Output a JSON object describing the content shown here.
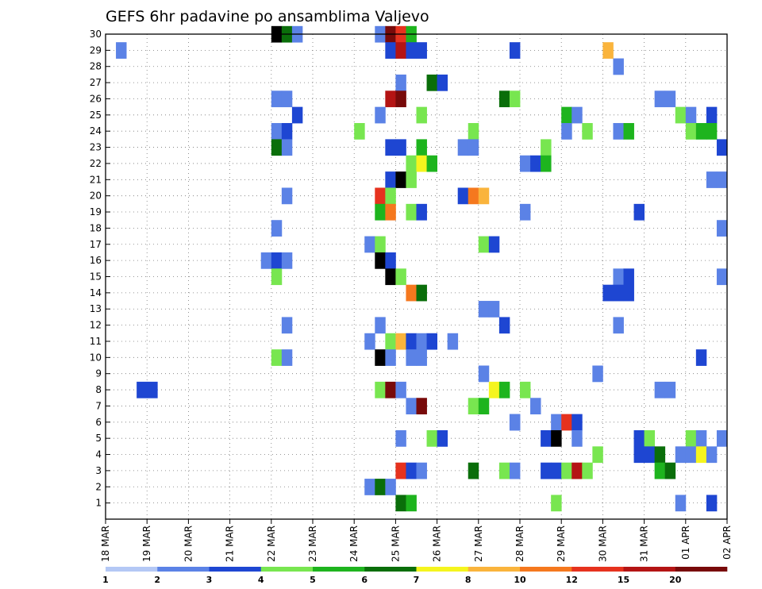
{
  "chart_data": {
    "type": "heatmap",
    "title": "GEFS 6hr padavine po ansamblima Valjevo",
    "x_tick_labels": [
      "18 MAR",
      "19 MAR",
      "20 MAR",
      "21 MAR",
      "22 MAR",
      "23 MAR",
      "24 MAR",
      "25 MAR",
      "26 MAR",
      "27 MAR",
      "28 MAR",
      "29 MAR",
      "30 MAR",
      "31 MAR",
      "01 APR",
      "02 APR"
    ],
    "y_tick_labels": [
      "1",
      "2",
      "3",
      "4",
      "5",
      "6",
      "7",
      "8",
      "9",
      "10",
      "11",
      "12",
      "13",
      "14",
      "15",
      "16",
      "17",
      "18",
      "19",
      "20",
      "21",
      "22",
      "23",
      "24",
      "25",
      "26",
      "27",
      "28",
      "29",
      "30"
    ],
    "xlim": [
      0,
      60
    ],
    "ylim": [
      0,
      30
    ],
    "grid": true,
    "legend": {
      "position": "bottom",
      "thresholds": [
        "1",
        "2",
        "3",
        "4",
        "5",
        "6",
        "7",
        "8",
        "10",
        "12",
        "15",
        "20"
      ],
      "colors": [
        "#b4c8f5",
        "#5b82e6",
        "#1e46d2",
        "#78e650",
        "#1eb41e",
        "#0a6e0a",
        "#f5f51e",
        "#fab43c",
        "#f5781e",
        "#e6321e",
        "#b41414",
        "#780a0a"
      ]
    },
    "cells": [
      [
        16,
        30,
        12
      ],
      [
        17,
        30,
        5
      ],
      [
        18,
        30,
        1
      ],
      [
        26,
        30,
        1
      ],
      [
        27,
        30,
        11
      ],
      [
        28,
        30,
        9
      ],
      [
        29,
        30,
        4
      ],
      [
        1,
        29,
        1
      ],
      [
        27,
        29,
        2
      ],
      [
        28,
        29,
        10
      ],
      [
        29,
        29,
        2
      ],
      [
        30,
        29,
        2
      ],
      [
        39,
        29,
        2
      ],
      [
        48,
        29,
        7
      ],
      [
        49,
        28,
        1
      ],
      [
        28,
        27,
        1
      ],
      [
        31,
        27,
        5
      ],
      [
        32,
        27,
        2
      ],
      [
        16,
        26,
        1
      ],
      [
        17,
        26,
        1
      ],
      [
        27,
        26,
        10
      ],
      [
        28,
        26,
        11
      ],
      [
        38,
        26,
        5
      ],
      [
        39,
        26,
        3
      ],
      [
        53,
        26,
        1
      ],
      [
        54,
        26,
        1
      ],
      [
        18,
        25,
        2
      ],
      [
        26,
        25,
        1
      ],
      [
        30,
        25,
        3
      ],
      [
        44,
        25,
        4
      ],
      [
        45,
        25,
        1
      ],
      [
        55,
        25,
        3
      ],
      [
        56,
        25,
        1
      ],
      [
        58,
        25,
        2
      ],
      [
        16,
        24,
        1
      ],
      [
        17,
        24,
        2
      ],
      [
        24,
        24,
        3
      ],
      [
        35,
        24,
        3
      ],
      [
        44,
        24,
        1
      ],
      [
        46,
        24,
        3
      ],
      [
        49,
        24,
        1
      ],
      [
        50,
        24,
        4
      ],
      [
        56,
        24,
        3
      ],
      [
        57,
        24,
        4
      ],
      [
        58,
        24,
        4
      ],
      [
        16,
        23,
        5
      ],
      [
        17,
        23,
        1
      ],
      [
        27,
        23,
        2
      ],
      [
        28,
        23,
        2
      ],
      [
        30,
        23,
        4
      ],
      [
        34,
        23,
        1
      ],
      [
        35,
        23,
        1
      ],
      [
        42,
        23,
        3
      ],
      [
        59,
        23,
        2
      ],
      [
        29,
        22,
        3
      ],
      [
        30,
        22,
        6
      ],
      [
        31,
        22,
        4
      ],
      [
        40,
        22,
        1
      ],
      [
        41,
        22,
        2
      ],
      [
        42,
        22,
        4
      ],
      [
        27,
        21,
        2
      ],
      [
        28,
        21,
        12
      ],
      [
        29,
        21,
        3
      ],
      [
        58,
        21,
        1
      ],
      [
        59,
        21,
        1
      ],
      [
        17,
        20,
        1
      ],
      [
        26,
        20,
        9
      ],
      [
        27,
        20,
        3
      ],
      [
        34,
        20,
        2
      ],
      [
        35,
        20,
        8
      ],
      [
        36,
        20,
        7
      ],
      [
        26,
        19,
        4
      ],
      [
        27,
        19,
        8
      ],
      [
        29,
        19,
        3
      ],
      [
        30,
        19,
        2
      ],
      [
        40,
        19,
        1
      ],
      [
        51,
        19,
        2
      ],
      [
        16,
        18,
        1
      ],
      [
        59,
        18,
        1
      ],
      [
        25,
        17,
        1
      ],
      [
        26,
        17,
        3
      ],
      [
        36,
        17,
        3
      ],
      [
        37,
        17,
        2
      ],
      [
        15,
        16,
        1
      ],
      [
        16,
        16,
        2
      ],
      [
        17,
        16,
        1
      ],
      [
        26,
        16,
        12
      ],
      [
        27,
        16,
        2
      ],
      [
        16,
        15,
        3
      ],
      [
        27,
        15,
        12
      ],
      [
        28,
        15,
        3
      ],
      [
        49,
        15,
        1
      ],
      [
        50,
        15,
        2
      ],
      [
        59,
        15,
        1
      ],
      [
        29,
        14,
        8
      ],
      [
        30,
        14,
        5
      ],
      [
        48,
        14,
        2
      ],
      [
        49,
        14,
        2
      ],
      [
        50,
        14,
        2
      ],
      [
        36,
        13,
        1
      ],
      [
        37,
        13,
        1
      ],
      [
        17,
        12,
        1
      ],
      [
        26,
        12,
        1
      ],
      [
        38,
        12,
        2
      ],
      [
        49,
        12,
        1
      ],
      [
        25,
        11,
        1
      ],
      [
        27,
        11,
        3
      ],
      [
        28,
        11,
        7
      ],
      [
        29,
        11,
        2
      ],
      [
        30,
        11,
        1
      ],
      [
        31,
        11,
        2
      ],
      [
        33,
        11,
        1
      ],
      [
        16,
        10,
        3
      ],
      [
        17,
        10,
        1
      ],
      [
        26,
        10,
        12
      ],
      [
        27,
        10,
        1
      ],
      [
        29,
        10,
        1
      ],
      [
        30,
        10,
        1
      ],
      [
        57,
        10,
        2
      ],
      [
        36,
        9,
        1
      ],
      [
        47,
        9,
        1
      ],
      [
        3,
        8,
        2
      ],
      [
        4,
        8,
        2
      ],
      [
        26,
        8,
        3
      ],
      [
        27,
        8,
        11
      ],
      [
        28,
        8,
        1
      ],
      [
        37,
        8,
        6
      ],
      [
        38,
        8,
        4
      ],
      [
        40,
        8,
        3
      ],
      [
        53,
        8,
        1
      ],
      [
        54,
        8,
        1
      ],
      [
        29,
        7,
        1
      ],
      [
        30,
        7,
        11
      ],
      [
        35,
        7,
        3
      ],
      [
        36,
        7,
        4
      ],
      [
        41,
        7,
        1
      ],
      [
        39,
        6,
        1
      ],
      [
        39,
        6,
        1
      ],
      [
        43,
        6,
        1
      ],
      [
        44,
        6,
        9
      ],
      [
        45,
        6,
        2
      ],
      [
        28,
        5,
        1
      ],
      [
        31,
        5,
        3
      ],
      [
        32,
        5,
        2
      ],
      [
        42,
        5,
        2
      ],
      [
        43,
        5,
        12
      ],
      [
        45,
        5,
        1
      ],
      [
        51,
        5,
        2
      ],
      [
        52,
        5,
        3
      ],
      [
        56,
        5,
        3
      ],
      [
        57,
        5,
        1
      ],
      [
        59,
        5,
        1
      ],
      [
        47,
        4,
        3
      ],
      [
        51,
        4,
        2
      ],
      [
        52,
        4,
        2
      ],
      [
        53,
        4,
        5
      ],
      [
        55,
        4,
        1
      ],
      [
        56,
        4,
        1
      ],
      [
        57,
        4,
        6
      ],
      [
        58,
        4,
        1
      ],
      [
        28,
        3,
        9
      ],
      [
        29,
        3,
        2
      ],
      [
        30,
        3,
        1
      ],
      [
        35,
        3,
        5
      ],
      [
        38,
        3,
        3
      ],
      [
        39,
        3,
        1
      ],
      [
        42,
        3,
        2
      ],
      [
        43,
        3,
        2
      ],
      [
        44,
        3,
        3
      ],
      [
        45,
        3,
        10
      ],
      [
        46,
        3,
        3
      ],
      [
        53,
        3,
        4
      ],
      [
        54,
        3,
        5
      ],
      [
        25,
        2,
        1
      ],
      [
        26,
        2,
        5
      ],
      [
        27,
        2,
        1
      ],
      [
        28,
        1,
        5
      ],
      [
        29,
        1,
        4
      ],
      [
        43,
        1,
        3
      ],
      [
        55,
        1,
        1
      ],
      [
        58,
        1,
        2
      ]
    ]
  }
}
